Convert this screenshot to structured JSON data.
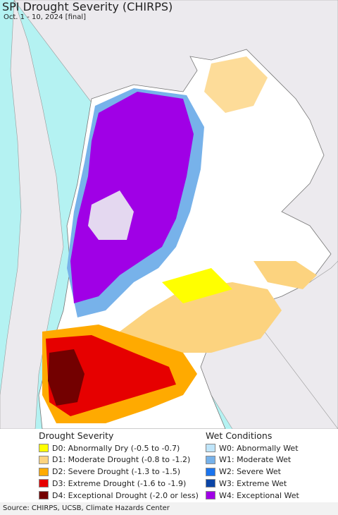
{
  "header": {
    "title": "SPI Drought Severity (CHIRPS)",
    "subtitle": "Oct. 1 - 10, 2024 [final]"
  },
  "legend": [
    {
      "title": "Drought Severity",
      "items": [
        {
          "label": "D0: Abnormally Dry (-0.5 to -0.7)",
          "color": "#ffff00"
        },
        {
          "label": "D1: Moderate Drought (-0.8 to -1.2)",
          "color": "#fcd37f"
        },
        {
          "label": "D2: Severe Drought (-1.3 to -1.5)",
          "color": "#ffaa00"
        },
        {
          "label": "D3: Extreme Drought (-1.6 to -1.9)",
          "color": "#e60000"
        },
        {
          "label": "D4: Exceptional Drought (-2.0 or less)",
          "color": "#730000"
        }
      ]
    },
    {
      "title": "Wet Conditions",
      "items": [
        {
          "label": "W0: Abnormally Wet",
          "color": "#bfe5fa"
        },
        {
          "label": "W1: Moderate Wet",
          "color": "#77b2ea"
        },
        {
          "label": "W2: Severe Wet",
          "color": "#1b74ee"
        },
        {
          "label": "W3: Extreme Wet",
          "color": "#0b45a6"
        },
        {
          "label": "W4: Exceptional Wet",
          "color": "#a000e6"
        }
      ]
    }
  ],
  "source": "Source: CHIRPS, UCSB, Climate Hazards Center"
}
